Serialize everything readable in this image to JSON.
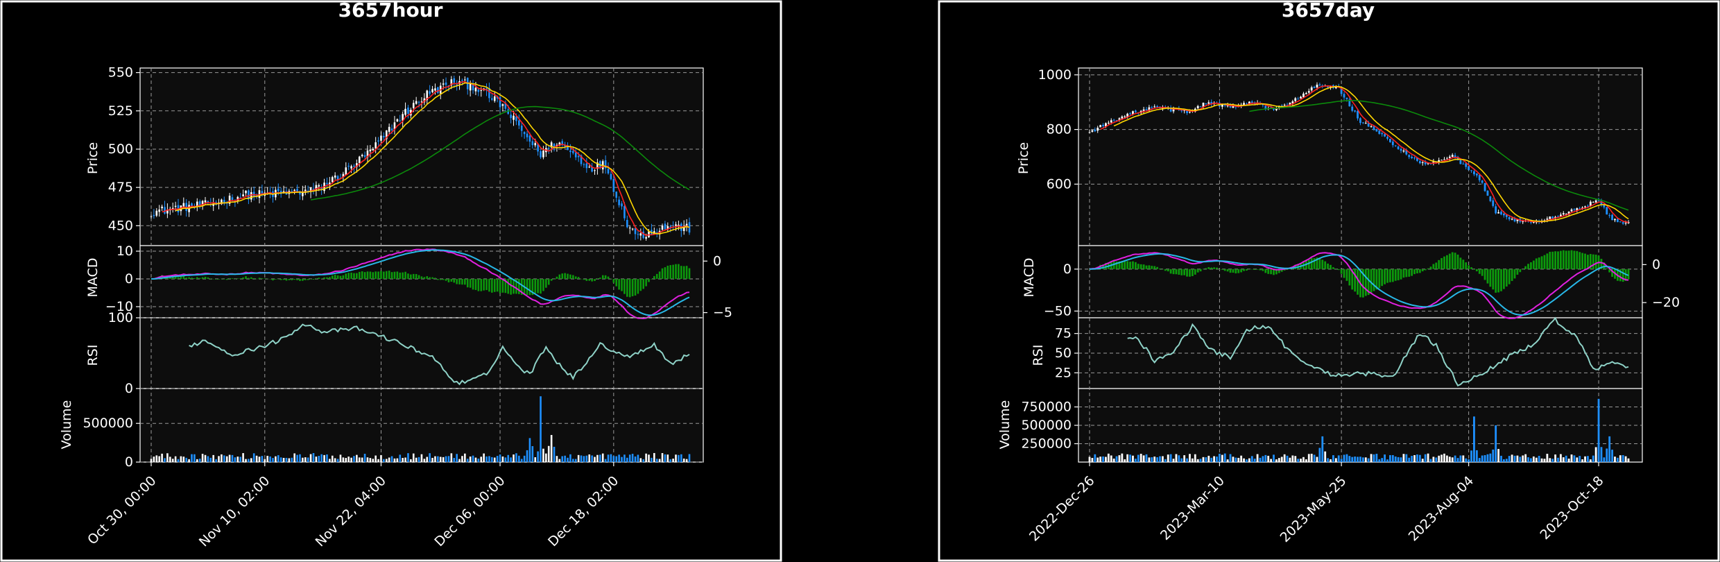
{
  "colors": {
    "background": "#000000",
    "axes_face": "#0d0d0d",
    "grid": "#9a9a9a",
    "up": "#ffffff",
    "down": "#1e90ff",
    "ma_fast": "#ff2020",
    "ma_mid": "#ffd700",
    "ma_slow": "#0b8a0b",
    "macd_line": "#e020e0",
    "signal_line": "#28b8e8",
    "hist": "#0c9a0c",
    "rsi": "#8fd3c8"
  },
  "chart_data": [
    {
      "type": "candlestick",
      "title": "3657hour",
      "panels": {
        "price": {
          "ylabel": "Price",
          "yticks": [
            "450",
            "475",
            "500",
            "525",
            "550"
          ],
          "ylim": [
            437,
            553
          ]
        },
        "macd": {
          "ylabel": "MACD",
          "yticks": [
            "−10",
            "0",
            "10"
          ],
          "ylim": [
            -14,
            12
          ],
          "right_yticks": [
            "0",
            "−5"
          ],
          "right_ylim": [
            -5.5,
            1.5
          ]
        },
        "rsi": {
          "ylabel": "RSI",
          "yticks": [
            "0",
            "100"
          ],
          "ylim": [
            0,
            100
          ]
        },
        "volume": {
          "ylabel": "Volume",
          "yticks": [
            "0",
            "500000"
          ],
          "ylim": [
            0,
            950000
          ]
        }
      },
      "xticks": [
        "Oct 30, 00:00",
        "Nov 10, 02:00",
        "Nov 22, 04:00",
        "Dec 06, 00:00",
        "Dec 18, 02:00"
      ],
      "n_bars": 200,
      "close_keypoints": [
        [
          0,
          459
        ],
        [
          12,
          462
        ],
        [
          22,
          464
        ],
        [
          34,
          470
        ],
        [
          48,
          471
        ],
        [
          60,
          473
        ],
        [
          70,
          483
        ],
        [
          82,
          500
        ],
        [
          92,
          521
        ],
        [
          102,
          536
        ],
        [
          112,
          544
        ],
        [
          120,
          541
        ],
        [
          130,
          528
        ],
        [
          138,
          510
        ],
        [
          144,
          497
        ],
        [
          150,
          505
        ],
        [
          156,
          497
        ],
        [
          162,
          488
        ],
        [
          168,
          490
        ],
        [
          172,
          470
        ],
        [
          176,
          452
        ],
        [
          180,
          443
        ],
        [
          186,
          447
        ],
        [
          192,
          450
        ],
        [
          199,
          448
        ]
      ],
      "rsi_keypoints": [
        [
          10,
          55
        ],
        [
          20,
          68
        ],
        [
          30,
          48
        ],
        [
          40,
          58
        ],
        [
          50,
          72
        ],
        [
          56,
          92
        ],
        [
          64,
          80
        ],
        [
          76,
          85
        ],
        [
          88,
          70
        ],
        [
          104,
          45
        ],
        [
          112,
          10
        ],
        [
          116,
          8
        ],
        [
          124,
          20
        ],
        [
          130,
          58
        ],
        [
          136,
          30
        ],
        [
          140,
          20
        ],
        [
          146,
          60
        ],
        [
          150,
          38
        ],
        [
          156,
          15
        ],
        [
          166,
          62
        ],
        [
          176,
          45
        ],
        [
          186,
          62
        ],
        [
          192,
          35
        ],
        [
          199,
          48
        ]
      ],
      "volume_spikes": [
        [
          140,
          310000
        ],
        [
          144,
          850000
        ],
        [
          148,
          350000
        ]
      ]
    },
    {
      "type": "candlestick",
      "title": "3657day",
      "panels": {
        "price": {
          "ylabel": "Price",
          "yticks": [
            "600",
            "800",
            "1000"
          ],
          "ylim": [
            375,
            1025
          ]
        },
        "macd": {
          "ylabel": "MACD",
          "yticks": [
            "−50",
            "0"
          ],
          "ylim": [
            -58,
            28
          ],
          "right_yticks": [
            "0",
            "−20"
          ],
          "right_ylim": [
            -28,
            10
          ]
        },
        "rsi": {
          "ylabel": "RSI",
          "yticks": [
            "25",
            "50",
            "75"
          ],
          "ylim": [
            5,
            95
          ]
        },
        "volume": {
          "ylabel": "Volume",
          "yticks": [
            "250000",
            "500000",
            "750000"
          ],
          "ylim": [
            0,
            1000000
          ]
        }
      },
      "xticks": [
        "2022-Dec-26",
        "2023-Mar-10",
        "2023-May-25",
        "2023-Aug-04",
        "2023-Oct-18"
      ],
      "n_bars": 200,
      "close_keypoints": [
        [
          0,
          790
        ],
        [
          12,
          850
        ],
        [
          24,
          880
        ],
        [
          36,
          865
        ],
        [
          44,
          900
        ],
        [
          52,
          880
        ],
        [
          60,
          900
        ],
        [
          68,
          870
        ],
        [
          76,
          910
        ],
        [
          84,
          960
        ],
        [
          92,
          950
        ],
        [
          100,
          830
        ],
        [
          108,
          780
        ],
        [
          118,
          700
        ],
        [
          124,
          670
        ],
        [
          134,
          700
        ],
        [
          144,
          620
        ],
        [
          150,
          500
        ],
        [
          156,
          470
        ],
        [
          164,
          460
        ],
        [
          172,
          480
        ],
        [
          180,
          510
        ],
        [
          188,
          540
        ],
        [
          192,
          480
        ],
        [
          196,
          460
        ],
        [
          199,
          455
        ]
      ],
      "rsi_keypoints": [
        [
          10,
          75
        ],
        [
          18,
          68
        ],
        [
          24,
          40
        ],
        [
          30,
          48
        ],
        [
          38,
          85
        ],
        [
          44,
          55
        ],
        [
          52,
          45
        ],
        [
          58,
          80
        ],
        [
          66,
          85
        ],
        [
          72,
          60
        ],
        [
          80,
          35
        ],
        [
          90,
          22
        ],
        [
          100,
          25
        ],
        [
          112,
          20
        ],
        [
          122,
          75
        ],
        [
          128,
          60
        ],
        [
          136,
          10
        ],
        [
          146,
          25
        ],
        [
          152,
          40
        ],
        [
          164,
          62
        ],
        [
          172,
          92
        ],
        [
          180,
          70
        ],
        [
          186,
          28
        ],
        [
          192,
          40
        ],
        [
          199,
          30
        ]
      ],
      "volume_spikes": [
        [
          86,
          350000
        ],
        [
          142,
          620000
        ],
        [
          150,
          500000
        ],
        [
          188,
          860000
        ],
        [
          192,
          350000
        ]
      ]
    }
  ]
}
